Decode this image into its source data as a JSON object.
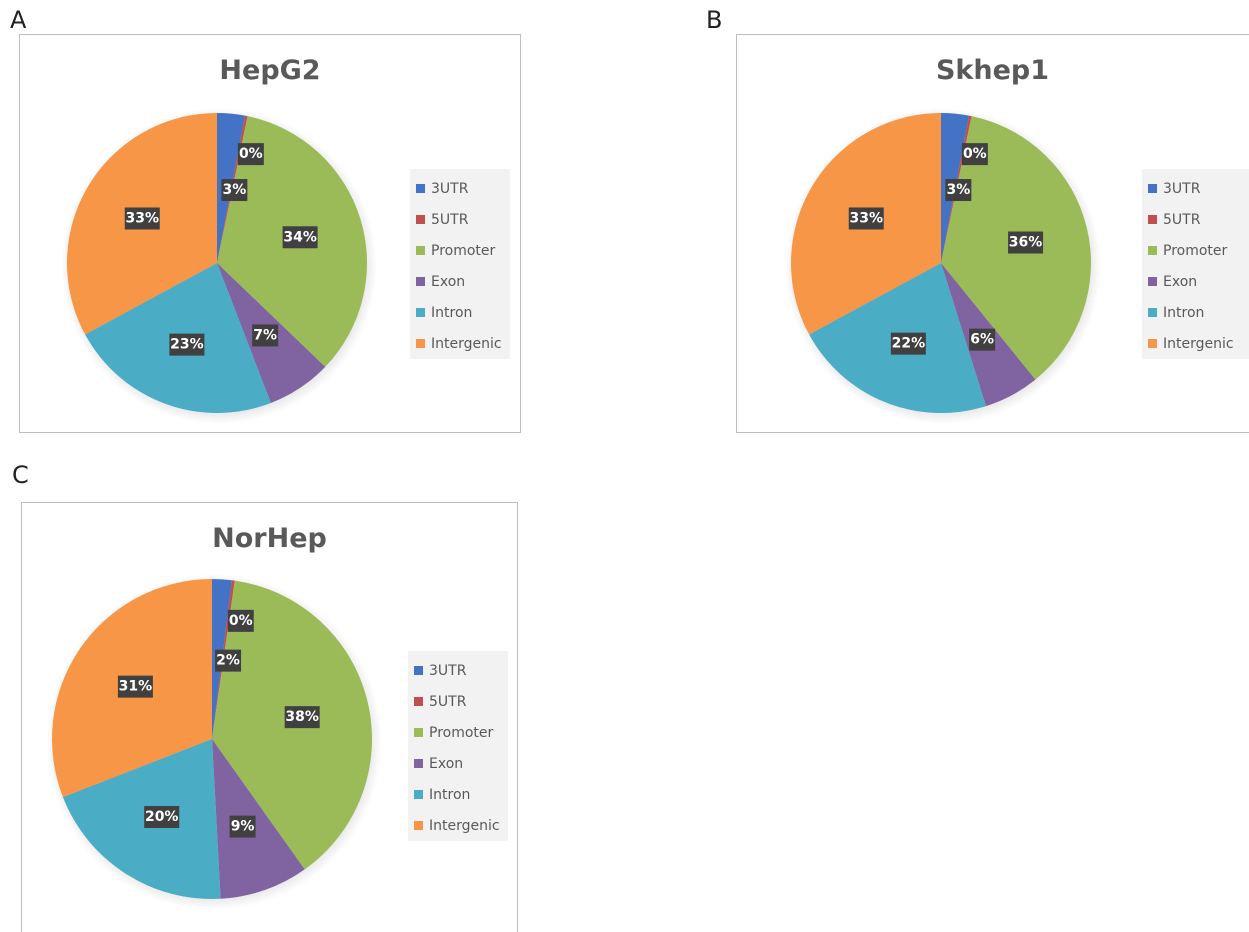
{
  "panels": [
    "A",
    "B",
    "C"
  ],
  "legend_labels": [
    "3UTR",
    "5UTR",
    "Promoter",
    "Exon",
    "Intron",
    "Intergenic"
  ],
  "colors": [
    "#4472c4",
    "#c0504d",
    "#9bbb59",
    "#8064a2",
    "#4bacc6",
    "#f79646"
  ],
  "chart_data": [
    {
      "type": "pie",
      "title": "HepG2",
      "categories": [
        "3UTR",
        "5UTR",
        "Promoter",
        "Exon",
        "Intron",
        "Intergenic"
      ],
      "values": [
        3,
        0,
        34,
        7,
        23,
        33
      ],
      "data_labels": [
        "3%",
        "0%",
        "34%",
        "7%",
        "23%",
        "33%"
      ],
      "legend": "right"
    },
    {
      "type": "pie",
      "title": "Skhep1",
      "categories": [
        "3UTR",
        "5UTR",
        "Promoter",
        "Exon",
        "Intron",
        "Intergenic"
      ],
      "values": [
        3,
        0,
        36,
        6,
        22,
        33
      ],
      "data_labels": [
        "3%",
        "0%",
        "36%",
        "6%",
        "22%",
        "33%"
      ],
      "legend": "right"
    },
    {
      "type": "pie",
      "title": "NorHep",
      "categories": [
        "3UTR",
        "5UTR",
        "Promoter",
        "Exon",
        "Intron",
        "Intergenic"
      ],
      "values": [
        2,
        0,
        38,
        9,
        20,
        31
      ],
      "data_labels": [
        "2%",
        "0%",
        "38%",
        "9%",
        "20%",
        "31%"
      ],
      "legend": "right"
    }
  ]
}
